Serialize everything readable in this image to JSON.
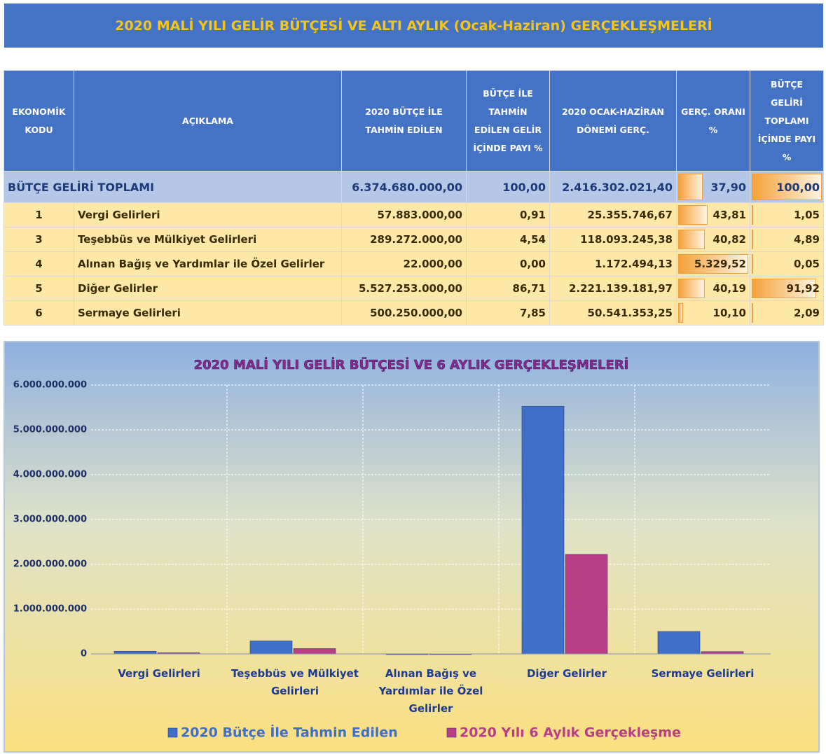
{
  "header": {
    "title": "2020 MALİ YILI GELİR BÜTÇESİ VE ALTI AYLIK (Ocak-Haziran) GERÇEKLEŞMELERİ"
  },
  "table": {
    "headers": [
      "EKONOMİK KODU",
      "AÇIKLAMA",
      "2020 BÜTÇE İLE TAHMİN EDİLEN",
      "BÜTÇE İLE TAHMİN EDİLEN GELİR İÇİNDE PAYI %",
      "2020 OCAK-HAZİRAN DÖNEMİ GERÇ.",
      "GERÇ. ORANI %",
      "BÜTÇE GELİRİ TOPLAMI İÇİNDE PAYI %"
    ],
    "total_row": [
      "BÜTÇE GELİRİ TOPLAMI",
      "6.374.680.000,00",
      "100,00",
      "2.416.302.021,40",
      "37,90",
      "100,00"
    ],
    "rows": [
      [
        "1",
        "Vergi Gelirleri",
        "57.883.000,00",
        "0,91",
        "25.355.746,67",
        "43,81",
        "1,05"
      ],
      [
        "3",
        "Teşebbüs ve Mülkiyet Gelirleri",
        "289.272.000,00",
        "4,54",
        "118.093.245,38",
        "40,82",
        "4,89"
      ],
      [
        "4",
        "Alınan Bağış ve Yardımlar ile Özel Gelirler",
        "22.000,00",
        "0,00",
        "1.172.494,13",
        "5.329,52",
        "0,05"
      ],
      [
        "5",
        "Diğer Gelirler",
        "5.527.253.000,00",
        "86,71",
        "2.221.139.181,97",
        "40,19",
        "91,92"
      ],
      [
        "6",
        "Sermaye Gelirleri",
        "500.250.000,00",
        "7,85",
        "50.541.353,25",
        "10,10",
        "2,09"
      ]
    ]
  },
  "chart_data": {
    "type": "bar",
    "title": "2020 MALİ YILI  GELİR BÜTÇESİ  VE 6 AYLIK GERÇEKLEŞMELERİ",
    "categories": [
      "Vergi Gelirleri",
      "Teşebbüs ve Mülkiyet Gelirleri",
      "Alınan Bağış ve Yardımlar ile Özel Gelirler",
      "Diğer Gelirler",
      "Sermaye Gelirleri"
    ],
    "series": [
      {
        "name": "2020 Bütçe İle Tahmin Edilen",
        "color": "#3f6fc8",
        "values": [
          57883000,
          289272000,
          22000,
          5527253000,
          500250000
        ]
      },
      {
        "name": "2020 Yılı 6 Aylık Gerçekleşme",
        "color": "#b83f86",
        "values": [
          25355746.67,
          118093245.38,
          1172494.13,
          2221139181.97,
          50541353.25
        ]
      }
    ],
    "ylim": [
      0,
      6000000000
    ],
    "yticks": [
      0,
      {
        "value": 1000000000,
        "label": "1.000.000.000"
      },
      {
        "value": 2000000000,
        "label": "2.000.000.000"
      },
      {
        "value": 3000000000,
        "label": "3.000.000.000"
      },
      {
        "value": 4000000000,
        "label": "4.000.000.000"
      },
      {
        "value": 5000000000,
        "label": "5.000.000.000"
      },
      {
        "value": 6000000000,
        "label": "6.000.000.000"
      }
    ],
    "grid": true,
    "legend": "bottom"
  }
}
